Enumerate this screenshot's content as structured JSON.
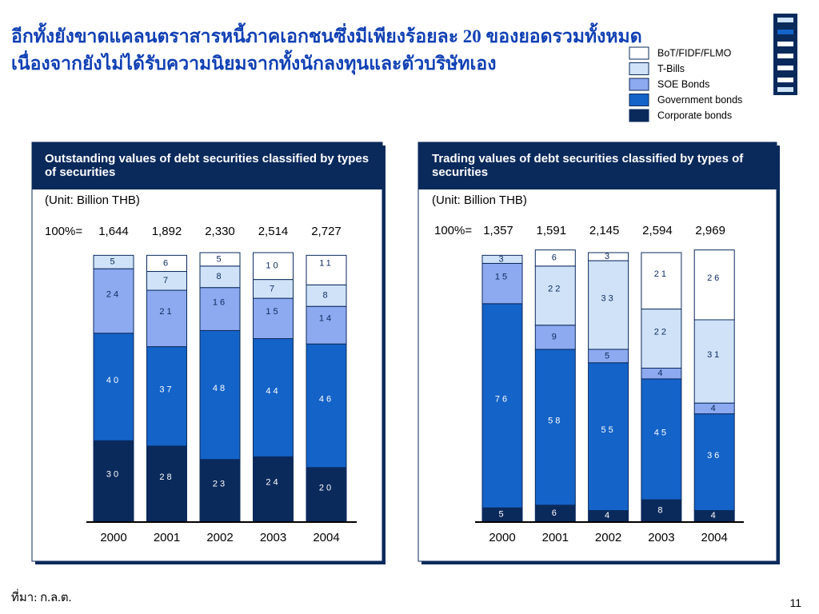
{
  "title_lines": [
    "อีกทั้งยังขาดแคลนตราสารหนี้ภาคเอกชนซึ่งมีเพียงร้อยละ 20 ของยอดรวมทั้งหมด",
    "เนื่องจากยังไม่ได้รับความนิยมจากทั้งนักลงทุนและตัวบริษัทเอง"
  ],
  "chart_data": [
    {
      "type": "bar",
      "stacked": true,
      "title": "Outstanding values of debt securities classified by types of securities",
      "subtitle": "(Unit: Billion THB)",
      "total_label": "100%=",
      "totals": {
        "values": [
          1644,
          1892,
          2330,
          2514,
          2727
        ],
        "value_labels": [
          "1,644",
          "1,892",
          "2,330",
          "2,514",
          "2,727"
        ]
      },
      "categories": [
        "2000",
        "2001",
        "2002",
        "2003",
        "2004"
      ],
      "ylim": [
        0,
        100
      ],
      "series": [
        {
          "name": "Corporate bonds",
          "color": "#0b2a5c",
          "values": [
            30,
            28,
            23,
            24,
            20
          ]
        },
        {
          "name": "Government bonds",
          "color": "#1463c8",
          "values": [
            40,
            37,
            48,
            44,
            46
          ]
        },
        {
          "name": "SOE Bonds",
          "color": "#8da9f0",
          "values": [
            24,
            21,
            16,
            15,
            14
          ]
        },
        {
          "name": "T-Bills",
          "color": "#cfe2f8",
          "values": [
            5,
            7,
            8,
            7,
            8
          ]
        },
        {
          "name": "BoT/FIDF/FLMO",
          "color": "#ffffff",
          "values": [
            null,
            6,
            5,
            10,
            11
          ]
        }
      ]
    },
    {
      "type": "bar",
      "stacked": true,
      "title": "Trading values of debt securities classified by types of securities",
      "subtitle": "(Unit: Billion THB)",
      "total_label": "100%=",
      "totals": {
        "values": [
          1357,
          1591,
          2145,
          2594,
          2969
        ],
        "value_labels": [
          "1,357",
          "1,591",
          "2,145",
          "2,594",
          "2,969"
        ]
      },
      "categories": [
        "2000",
        "2001",
        "2002",
        "2003",
        "2004"
      ],
      "ylim": [
        0,
        100
      ],
      "series": [
        {
          "name": "Corporate bonds",
          "color": "#0b2a5c",
          "values": [
            5,
            6,
            4,
            8,
            4
          ]
        },
        {
          "name": "Government bonds",
          "color": "#1463c8",
          "values": [
            76,
            58,
            55,
            45,
            36
          ]
        },
        {
          "name": "SOE Bonds",
          "color": "#8da9f0",
          "values": [
            15,
            9,
            5,
            4,
            4
          ]
        },
        {
          "name": "T-Bills",
          "color": "#cfe2f8",
          "values": [
            3,
            22,
            33,
            22,
            31
          ]
        },
        {
          "name": "BoT/FIDF/FLMO",
          "color": "#ffffff",
          "values": [
            null,
            6,
            3,
            21,
            26
          ]
        }
      ]
    }
  ],
  "source": "ที่มา: ก.ล.ต.",
  "page_number": 11
}
